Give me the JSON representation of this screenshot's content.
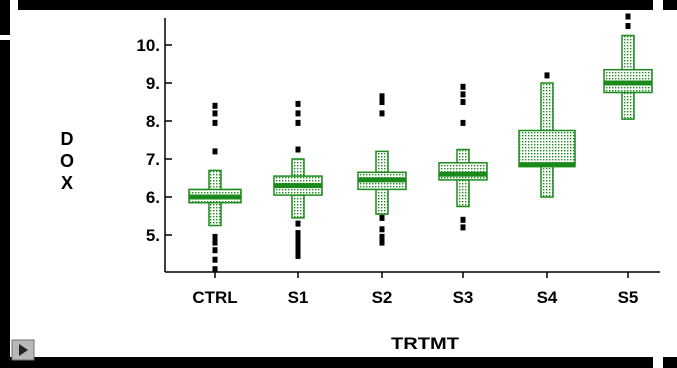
{
  "chart_data": {
    "type": "box",
    "xlabel": "TRTMT",
    "ylabel": "D\nO\nX",
    "ylim": [
      4.0,
      10.8
    ],
    "yticks": [
      5,
      6,
      7,
      8,
      9,
      10
    ],
    "ytick_labels": [
      "5.",
      "6.",
      "7.",
      "8.",
      "9.",
      "10."
    ],
    "categories": [
      "CTRL",
      "S1",
      "S2",
      "S3",
      "S4",
      "S5"
    ],
    "boxes": [
      {
        "category": "CTRL",
        "whisker_low": 5.25,
        "q1": 5.85,
        "median": 6.0,
        "q3": 6.2,
        "whisker_high": 6.7,
        "outliers": [
          4.1,
          4.35,
          4.6,
          4.8,
          4.95,
          7.2,
          7.95,
          8.2,
          8.4
        ]
      },
      {
        "category": "S1",
        "whisker_low": 5.45,
        "q1": 6.05,
        "median": 6.3,
        "q3": 6.55,
        "whisker_high": 7.0,
        "outliers": [
          4.45,
          4.6,
          4.75,
          4.9,
          5.05,
          5.3,
          7.25,
          7.95,
          8.2,
          8.45
        ]
      },
      {
        "category": "S2",
        "whisker_low": 5.55,
        "q1": 6.2,
        "median": 6.45,
        "q3": 6.65,
        "whisker_high": 7.2,
        "outliers": [
          4.8,
          4.95,
          5.15,
          5.45,
          8.2,
          8.5,
          8.65
        ]
      },
      {
        "category": "S3",
        "whisker_low": 5.75,
        "q1": 6.45,
        "median": 6.6,
        "q3": 6.9,
        "whisker_high": 7.25,
        "outliers": [
          5.2,
          5.4,
          7.95,
          8.5,
          8.7,
          8.9
        ]
      },
      {
        "category": "S4",
        "whisker_low": 6.0,
        "q1": 6.8,
        "median": 6.85,
        "q3": 7.75,
        "whisker_high": 9.0,
        "outliers": [
          9.2
        ]
      },
      {
        "category": "S5",
        "whisker_low": 8.05,
        "q1": 8.75,
        "median": 9.0,
        "q3": 9.35,
        "whisker_high": 10.25,
        "outliers": [
          10.5,
          10.75
        ]
      }
    ],
    "colors": {
      "box": "#1a8a1a",
      "fill": "#e8f4e0",
      "dot": "#1a8a1a",
      "outlier": "#000000"
    },
    "grid": false,
    "legend": "none"
  }
}
